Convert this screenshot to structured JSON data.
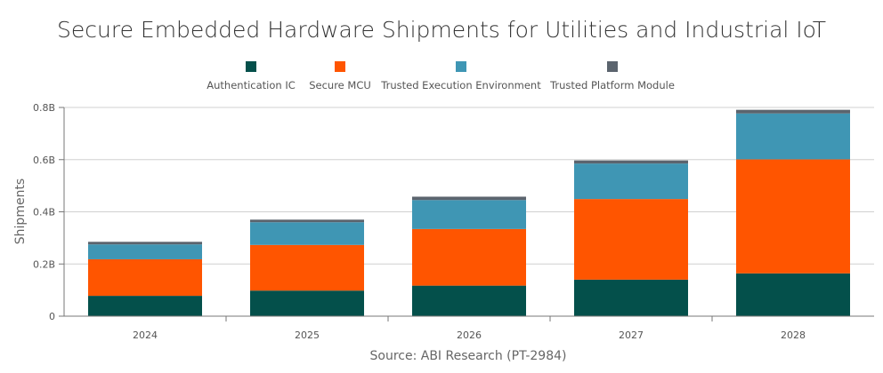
{
  "chart_data": {
    "type": "bar",
    "stacked": true,
    "title": "Secure Embedded Hardware Shipments for Utilities and Industrial IoT",
    "ylabel": "Shipments",
    "xlabel": "",
    "source": "Source: ABI Research (PT-2984)",
    "categories": [
      "2024",
      "2025",
      "2026",
      "2027",
      "2028"
    ],
    "ylim": [
      0,
      0.8
    ],
    "yticks": [
      0,
      0.2,
      0.4,
      0.6,
      0.8
    ],
    "ytick_labels": [
      "0",
      "0.2B",
      "0.4B",
      "0.6B",
      "0.8B"
    ],
    "grid": true,
    "legend": "top",
    "series": [
      {
        "name": "Authentication IC",
        "color": "#04504b",
        "values": [
          0.078,
          0.098,
          0.117,
          0.14,
          0.164
        ]
      },
      {
        "name": "Secure MCU",
        "color": "#ff5500",
        "values": [
          0.14,
          0.175,
          0.217,
          0.309,
          0.437
        ]
      },
      {
        "name": "Trusted Execution Environment",
        "color": "#3f96b4",
        "values": [
          0.057,
          0.087,
          0.111,
          0.136,
          0.176
        ]
      },
      {
        "name": "Trusted Platform Module",
        "color": "#5b646e",
        "values": [
          0.01,
          0.01,
          0.013,
          0.012,
          0.014
        ]
      }
    ]
  }
}
